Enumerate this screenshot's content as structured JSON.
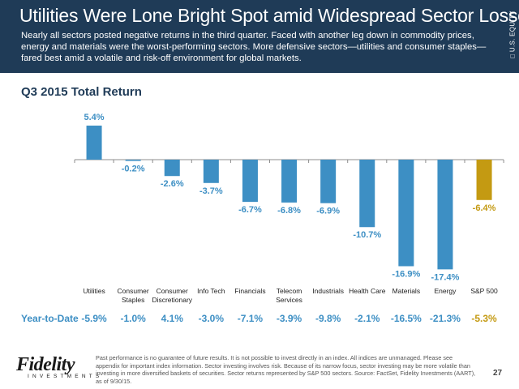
{
  "header": {
    "title": "Utilities Were Lone Bright Spot amid Widespread Sector Losses",
    "subtitle": "Nearly all sectors posted negative returns in the third quarter. Faced with another leg down in commodity prices, energy and materials were the worst-performing sectors. More defensive sectors—utilities and consumer staples—fared best amid a volatile and risk-off environment for global markets.",
    "side_label": "□ U.S. EQUITY"
  },
  "chart_data": {
    "type": "bar",
    "title": "Q3 2015 Total Return",
    "categories": [
      "Utilities",
      "Consumer\nStaples",
      "Consumer\nDiscretionary",
      "Info Tech",
      "Financials",
      "Telecom\nServices",
      "Industrials",
      "Health Care",
      "Materials",
      "Energy",
      "S&P 500"
    ],
    "values": [
      5.4,
      -0.2,
      -2.6,
      -3.7,
      -6.7,
      -6.8,
      -6.9,
      -10.7,
      -16.9,
      -17.4,
      -6.4
    ],
    "value_labels": [
      "5.4%",
      "-0.2%",
      "-2.6%",
      "-3.7%",
      "-6.7%",
      "-6.8%",
      "-6.9%",
      "-10.7%",
      "-16.9%",
      "-17.4%",
      "-6.4%"
    ],
    "bar_colors": [
      "#3d8fc4",
      "#3d8fc4",
      "#3d8fc4",
      "#3d8fc4",
      "#3d8fc4",
      "#3d8fc4",
      "#3d8fc4",
      "#3d8fc4",
      "#3d8fc4",
      "#3d8fc4",
      "#c49a12"
    ],
    "ylim": [
      -18,
      6
    ],
    "grid": false,
    "xlabel": "",
    "ylabel": ""
  },
  "ytd": {
    "label": "Year-to-Date",
    "values": [
      "-5.9%",
      "-1.0%",
      "4.1%",
      "-3.0%",
      "-7.1%",
      "-3.9%",
      "-9.8%",
      "-2.1%",
      "-16.5%",
      "-21.3%",
      "-5.3%"
    ]
  },
  "colors": {
    "header_bg": "#1f3b57",
    "sector": "#3d8fc4",
    "benchmark": "#c49a12"
  },
  "logo": {
    "name": "Fidelity",
    "sub": "INVESTMENTS"
  },
  "footnote": "Past performance is no guarantee of future results. It is not possible to invest directly in an index. All indices are unmanaged. Please see appendix for important index information. Sector investing involves risk. Because of its narrow focus, sector investing may be more volatile than investing in more diversified baskets of securities. Sector returns represented by S&P 500 sectors. Source: FactSet, Fidelity Investments (AART), as of 9/30/15.",
  "page_number": "27"
}
